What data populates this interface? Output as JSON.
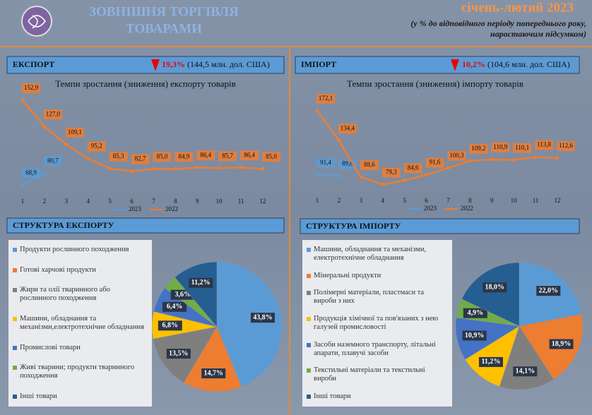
{
  "header": {
    "title_line1": "ЗОВНІШНЯ ТОРГІВЛЯ",
    "title_line2": "ТОВАРАМИ",
    "period": "січень-лютий 2023",
    "note_line1": "(у % до відповідного періоду попереднього року,",
    "note_line2": "наростаючим підсумком)"
  },
  "panels": [
    {
      "label": "ЕКСПОРТ",
      "change": "19,3%",
      "detail": "(144,5 млн. дол. США)"
    },
    {
      "label": "ІМПОРТ",
      "change": "10,2%",
      "detail": "(104,6 млн. дол. США)"
    }
  ],
  "chart_data": [
    {
      "type": "line",
      "title": "Темпи зростання (зниження) експорту товарів",
      "categories": [
        "1",
        "2",
        "3",
        "4",
        "5",
        "6",
        "7",
        "8",
        "9",
        "10",
        "11",
        "12"
      ],
      "ylim": [
        60,
        160
      ],
      "series": [
        {
          "name": "2023",
          "color": "#5b9bd5",
          "values": [
            68.9,
            80.7,
            null,
            null,
            null,
            null,
            null,
            null,
            null,
            null,
            null,
            null
          ],
          "value_labels": [
            "68,9",
            "80,7",
            null,
            null,
            null,
            null,
            null,
            null,
            null,
            null,
            null,
            null
          ]
        },
        {
          "name": "2022",
          "color": "#ed7d31",
          "values": [
            152.9,
            127.0,
            109.1,
            95.2,
            85.3,
            82.7,
            85.0,
            84.9,
            86.4,
            85.7,
            86.4,
            85.0
          ],
          "value_labels": [
            "152,9",
            "127,0",
            "109,1",
            "95,2",
            "85,3",
            "82,7",
            "85,0",
            "84,9",
            "86,4",
            "85,7",
            "86,4",
            "85,0"
          ]
        }
      ]
    },
    {
      "type": "line",
      "title": "Темпи зростання (зниження) імпорту товарів",
      "categories": [
        "1",
        "2",
        "3",
        "4",
        "5",
        "6",
        "7",
        "8",
        "9",
        "10",
        "11",
        "12"
      ],
      "ylim": [
        70,
        180
      ],
      "series": [
        {
          "name": "2023",
          "color": "#5b9bd5",
          "values": [
            91.4,
            89.8,
            null,
            null,
            null,
            null,
            null,
            null,
            null,
            null,
            null,
            null
          ],
          "value_labels": [
            "91,4",
            "89,8",
            null,
            null,
            null,
            null,
            null,
            null,
            null,
            null,
            null,
            null
          ]
        },
        {
          "name": "2022",
          "color": "#ed7d31",
          "values": [
            172.1,
            134.4,
            88.6,
            79.3,
            84.6,
            91.6,
            100.3,
            109.2,
            110.9,
            110.1,
            113.8,
            112.6
          ],
          "value_labels": [
            "172,1",
            "134,4",
            "88,6",
            "79,3",
            "84,6",
            "91,6",
            "100,3",
            "109,2",
            "110,9",
            "110,1",
            "113,8",
            "112,6"
          ]
        }
      ]
    },
    {
      "type": "pie",
      "title": "СТРУКТУРА ЕКСПОРТУ",
      "categories": [
        "Продукти рослинного походження",
        "Готові харчові продукти",
        "Жири та олії тваринного або рослинного походження",
        "Машини, обладнання та механізми,електротехнічне обладнання",
        "Промислові товари",
        "Живі тварини; продукти тваринного походження",
        "Інші товари"
      ],
      "values": [
        43.8,
        14.7,
        13.5,
        6.8,
        6.4,
        3.6,
        11.2
      ],
      "value_labels": [
        "43,8%",
        "14,7%",
        "13,5%",
        "6,8%",
        "6,4%",
        "3,6%",
        "11,2%"
      ],
      "colors": [
        "#5b9bd5",
        "#ed7d31",
        "#7f7f7f",
        "#ffc000",
        "#4472c4",
        "#70ad47",
        "#255e91"
      ]
    },
    {
      "type": "pie",
      "title": "СТРУКТУРА  ІМПОРТУ",
      "categories": [
        "Машини, обладнання та механізми, електротехнічне обладнання",
        "Мінеральні продукти",
        "Полімерні матеріали, пластмаси та вироби з них",
        "Продукція хімічної та пов'язаних з нею галузей промисловості",
        "Засоби наземного транспорту, літальні апарати, плавучі засоби",
        "Текстильні матеріали та текстильні вироби",
        "Інші товари"
      ],
      "values": [
        22.0,
        18.9,
        14.1,
        11.2,
        10.9,
        4.9,
        18.0
      ],
      "value_labels": [
        "22,0%",
        "18,9%",
        "14,1%",
        "11,2%",
        "10,9%",
        "4,9%",
        "18,0%"
      ],
      "colors": [
        "#5b9bd5",
        "#ed7d31",
        "#7f7f7f",
        "#ffc000",
        "#4472c4",
        "#70ad47",
        "#255e91"
      ]
    }
  ]
}
